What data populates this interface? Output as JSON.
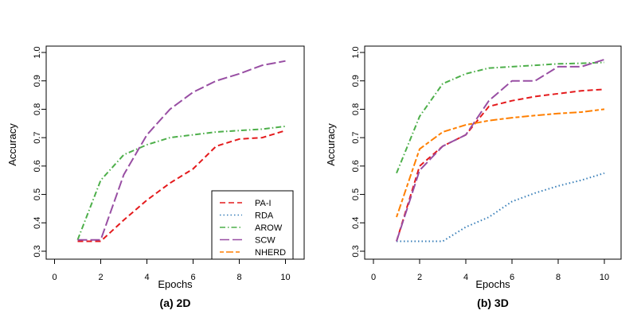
{
  "chart_data": [
    {
      "type": "line",
      "title": "(a) 2D",
      "xlabel": "Epochs",
      "ylabel": "Accuracy",
      "xlim": [
        0,
        10
      ],
      "ylim": [
        0.3,
        1.0
      ],
      "xticks": [
        "0",
        "2",
        "4",
        "6",
        "8",
        "10"
      ],
      "yticks": [
        "0.3",
        "0.4",
        "0.5",
        "0.6",
        "0.7",
        "0.8",
        "0.9",
        "1.0"
      ],
      "x": [
        1,
        2,
        3,
        4,
        5,
        6,
        7,
        8,
        9,
        10
      ],
      "legend": {
        "position": "bottom-right"
      },
      "series": [
        {
          "name": "PA-I",
          "color": "#e41a1c",
          "dash": "dashed",
          "values": [
            0.335,
            0.335,
            0.41,
            0.48,
            0.54,
            0.59,
            0.67,
            0.695,
            0.7,
            0.725
          ]
        },
        {
          "name": "RDA",
          "color": "#377eb8",
          "dash": "dotted",
          "values": [
            null,
            null,
            null,
            null,
            null,
            null,
            null,
            null,
            null,
            null
          ]
        },
        {
          "name": "AROW",
          "color": "#4daf4a",
          "dash": "dotdash",
          "values": [
            0.34,
            0.55,
            0.64,
            0.675,
            0.7,
            0.71,
            0.72,
            0.725,
            0.73,
            0.74
          ]
        },
        {
          "name": "SCW",
          "color": "#984ea3",
          "dash": "longdash",
          "values": [
            0.34,
            0.34,
            0.57,
            0.71,
            0.8,
            0.86,
            0.9,
            0.925,
            0.955,
            0.97
          ]
        },
        {
          "name": "NHERD",
          "color": "#ff7f00",
          "dash": "twodash",
          "values": [
            null,
            null,
            null,
            null,
            null,
            null,
            null,
            null,
            null,
            null
          ]
        }
      ]
    },
    {
      "type": "line",
      "title": "(b) 3D",
      "xlabel": "Epochs",
      "ylabel": "Accuracy",
      "xlim": [
        0,
        10
      ],
      "ylim": [
        0.3,
        1.0
      ],
      "xticks": [
        "0",
        "2",
        "4",
        "6",
        "8",
        "10"
      ],
      "yticks": [
        "0.3",
        "0.4",
        "0.5",
        "0.6",
        "0.7",
        "0.8",
        "0.9",
        "1.0"
      ],
      "x": [
        1,
        2,
        3,
        4,
        5,
        6,
        7,
        8,
        9,
        10
      ],
      "series": [
        {
          "name": "PA-I",
          "color": "#e41a1c",
          "dash": "dashed",
          "values": [
            0.335,
            0.6,
            0.67,
            0.71,
            0.81,
            0.83,
            0.845,
            0.855,
            0.865,
            0.87
          ]
        },
        {
          "name": "RDA",
          "color": "#377eb8",
          "dash": "dotted",
          "values": [
            0.335,
            0.335,
            0.335,
            0.385,
            0.42,
            0.475,
            0.505,
            0.53,
            0.55,
            0.575
          ]
        },
        {
          "name": "AROW",
          "color": "#4daf4a",
          "dash": "dotdash",
          "values": [
            0.575,
            0.775,
            0.89,
            0.925,
            0.945,
            0.95,
            0.955,
            0.96,
            0.962,
            0.965
          ]
        },
        {
          "name": "SCW",
          "color": "#984ea3",
          "dash": "longdash",
          "values": [
            0.335,
            0.585,
            0.67,
            0.71,
            0.83,
            0.9,
            0.9,
            0.95,
            0.95,
            0.975
          ]
        },
        {
          "name": "NHERD",
          "color": "#ff7f00",
          "dash": "twodash",
          "values": [
            0.42,
            0.66,
            0.72,
            0.745,
            0.76,
            0.77,
            0.778,
            0.785,
            0.79,
            0.8
          ]
        }
      ]
    }
  ]
}
